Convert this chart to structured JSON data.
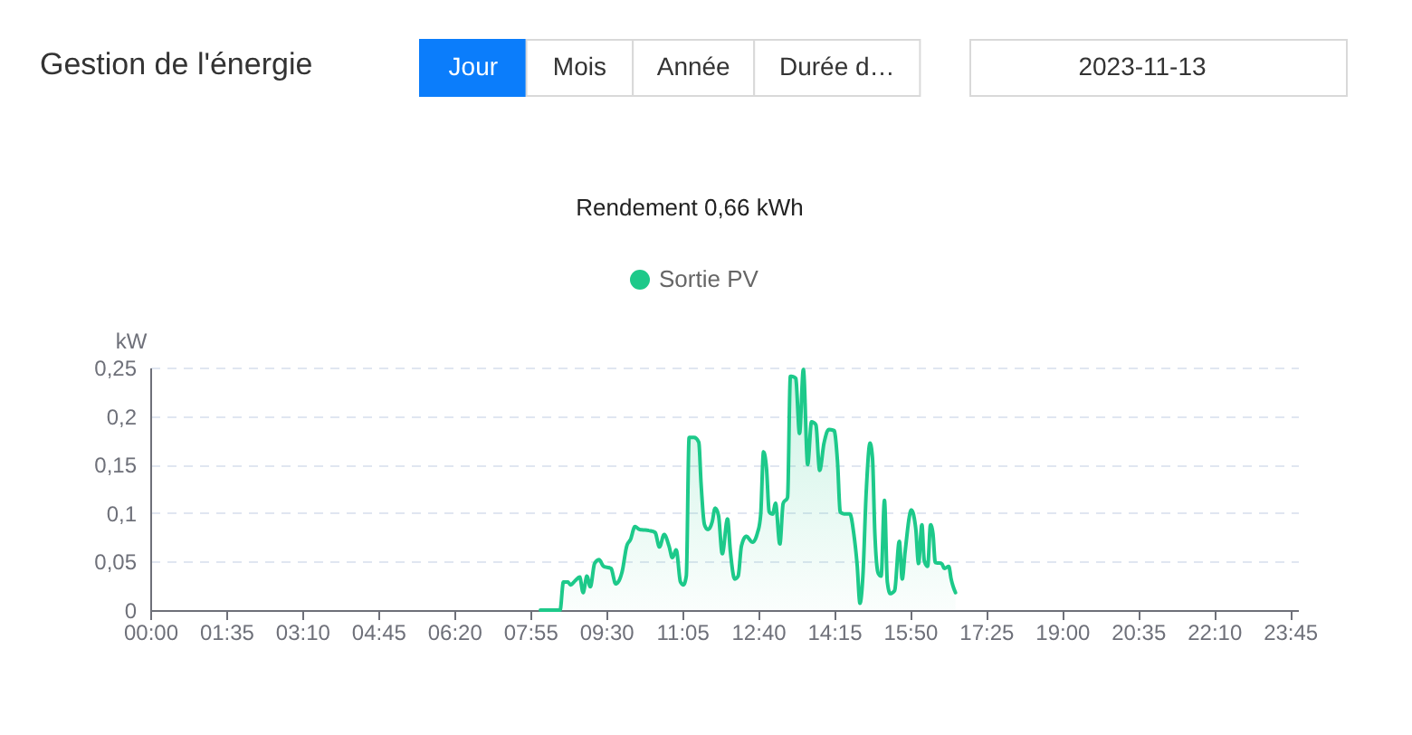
{
  "chart_data": {
    "type": "area",
    "title": "Gestion de l'énergie",
    "subtitle": "Rendement 0,66 kWh",
    "ylabel": "kW",
    "annotations": [
      "Jour",
      "Mois",
      "Année",
      "Durée d…",
      "2023-11-13"
    ],
    "x": [
      8.13,
      8.54,
      8.61,
      8.7,
      8.76,
      8.85,
      8.95,
      9.02,
      9.1,
      9.17,
      9.26,
      9.35,
      9.45,
      9.6,
      9.7,
      9.83,
      9.93,
      10.01,
      10.1,
      10.2,
      10.39,
      10.52,
      10.61,
      10.71,
      10.81,
      10.88,
      10.96,
      11.05,
      11.11,
      11.17,
      11.23,
      11.33,
      11.43,
      11.48,
      11.55,
      11.62,
      11.71,
      11.77,
      11.84,
      11.92,
      12.03,
      12.09,
      12.18,
      12.25,
      12.32,
      12.42,
      12.55,
      12.65,
      12.72,
      12.78,
      12.84,
      12.9,
      12.97,
      13.03,
      13.12,
      13.19,
      13.28,
      13.34,
      13.45,
      13.53,
      13.61,
      13.7,
      13.78,
      13.87,
      13.95,
      14.04,
      14.14,
      14.25,
      14.32,
      14.38,
      14.48,
      14.58,
      14.66,
      14.73,
      14.79,
      14.85,
      14.92,
      15.0,
      15.05,
      15.1,
      15.17,
      15.23,
      15.3,
      15.36,
      15.42,
      15.51,
      15.61,
      15.67,
      15.73,
      15.86,
      15.95,
      16.01,
      16.08,
      16.13,
      16.2,
      16.26,
      16.31,
      16.36,
      16.49,
      16.55,
      16.64,
      16.69,
      16.78
    ],
    "series": [
      {
        "name": "Sortie PV",
        "color": "#1dc98a",
        "values": [
          0,
          0,
          0.029,
          0.029,
          0.026,
          0.03,
          0.034,
          0.018,
          0.035,
          0.024,
          0.048,
          0.052,
          0.045,
          0.043,
          0.027,
          0.039,
          0.066,
          0.073,
          0.086,
          0.083,
          0.082,
          0.08,
          0.065,
          0.078,
          0.066,
          0.054,
          0.062,
          0.029,
          0.026,
          0.035,
          0.178,
          0.178,
          0.173,
          0.129,
          0.088,
          0.083,
          0.091,
          0.105,
          0.098,
          0.058,
          0.094,
          0.06,
          0.032,
          0.035,
          0.066,
          0.076,
          0.07,
          0.079,
          0.098,
          0.163,
          0.147,
          0.101,
          0.099,
          0.11,
          0.068,
          0.11,
          0.116,
          0.241,
          0.239,
          0.182,
          0.248,
          0.15,
          0.194,
          0.191,
          0.144,
          0.172,
          0.186,
          0.185,
          0.154,
          0.101,
          0.099,
          0.099,
          0.079,
          0.047,
          0.007,
          0.035,
          0.122,
          0.172,
          0.157,
          0.079,
          0.038,
          0.035,
          0.113,
          0.029,
          0.017,
          0.02,
          0.071,
          0.032,
          0.06,
          0.103,
          0.085,
          0.048,
          0.088,
          0.051,
          0.045,
          0.088,
          0.079,
          0.049,
          0.048,
          0.043,
          0.045,
          0.032,
          0.018
        ]
      }
    ],
    "xlim": [
      0,
      23.9167
    ],
    "xticks": [
      {
        "value": 0,
        "label": "00:00"
      },
      {
        "value": 1.5833,
        "label": "01:35"
      },
      {
        "value": 3.1667,
        "label": "03:10"
      },
      {
        "value": 4.75,
        "label": "04:45"
      },
      {
        "value": 6.3333,
        "label": "06:20"
      },
      {
        "value": 7.9167,
        "label": "07:55"
      },
      {
        "value": 9.5,
        "label": "09:30"
      },
      {
        "value": 11.0833,
        "label": "11:05"
      },
      {
        "value": 12.6667,
        "label": "12:40"
      },
      {
        "value": 14.25,
        "label": "14:15"
      },
      {
        "value": 15.8333,
        "label": "15:50"
      },
      {
        "value": 17.4167,
        "label": "17:25"
      },
      {
        "value": 19,
        "label": "19:00"
      },
      {
        "value": 20.5833,
        "label": "20:35"
      },
      {
        "value": 22.1667,
        "label": "22:10"
      },
      {
        "value": 23.75,
        "label": "23:45"
      }
    ],
    "ylim": [
      0,
      0.25
    ],
    "yticks": [
      0,
      {
        "value": 0.05,
        "label": "0,05"
      },
      {
        "value": 0.1,
        "label": "0,1"
      },
      {
        "value": 0.15,
        "label": "0,15"
      },
      {
        "value": 0.2,
        "label": "0,2"
      },
      {
        "value": 0.25,
        "label": "0,25"
      }
    ],
    "grid": "y",
    "legend": "top"
  }
}
